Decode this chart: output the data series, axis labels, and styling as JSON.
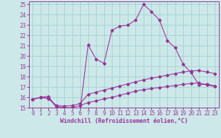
{
  "xlabel": "Windchill (Refroidissement éolien,°C)",
  "xlim": [
    -0.5,
    23.5
  ],
  "ylim": [
    15,
    25.3
  ],
  "yticks": [
    15,
    16,
    17,
    18,
    19,
    20,
    21,
    22,
    23,
    24,
    25
  ],
  "xticks": [
    0,
    1,
    2,
    3,
    4,
    5,
    6,
    7,
    8,
    9,
    10,
    11,
    12,
    13,
    14,
    15,
    16,
    17,
    18,
    19,
    20,
    21,
    22,
    23
  ],
  "background_color": "#cce8e8",
  "grid_color": "#99cccc",
  "line_color": "#993399",
  "line1_x": [
    0,
    1,
    2,
    3,
    4,
    5,
    6,
    7,
    8,
    9,
    10,
    11,
    12,
    13,
    14,
    15,
    16,
    17,
    18,
    19,
    20,
    21,
    22,
    23
  ],
  "line1_y": [
    15.8,
    16.0,
    16.1,
    15.0,
    14.9,
    14.85,
    14.85,
    21.1,
    19.7,
    19.3,
    22.5,
    22.9,
    23.0,
    23.5,
    25.0,
    24.3,
    23.5,
    21.5,
    20.8,
    19.2,
    18.4,
    17.2,
    17.3,
    17.1
  ],
  "line2_x": [
    0,
    1,
    2,
    3,
    4,
    5,
    6,
    7,
    8,
    9,
    10,
    11,
    12,
    13,
    14,
    15,
    16,
    17,
    18,
    19,
    20,
    21,
    22,
    23
  ],
  "line2_y": [
    15.8,
    16.0,
    15.9,
    15.2,
    15.15,
    15.2,
    15.4,
    16.3,
    16.5,
    16.7,
    16.9,
    17.1,
    17.3,
    17.5,
    17.7,
    17.85,
    18.0,
    18.15,
    18.3,
    18.45,
    18.55,
    18.6,
    18.45,
    18.3
  ],
  "line3_x": [
    0,
    1,
    2,
    3,
    4,
    5,
    6,
    7,
    8,
    9,
    10,
    11,
    12,
    13,
    14,
    15,
    16,
    17,
    18,
    19,
    20,
    21,
    22,
    23
  ],
  "line3_y": [
    15.8,
    16.0,
    15.9,
    15.1,
    15.0,
    15.0,
    15.2,
    15.5,
    15.65,
    15.85,
    16.0,
    16.2,
    16.4,
    16.6,
    16.75,
    16.85,
    16.95,
    17.05,
    17.15,
    17.25,
    17.35,
    17.4,
    17.2,
    17.05
  ],
  "marker": "D",
  "markersize": 2.0,
  "linewidth": 0.8,
  "tick_fontsize": 5.5,
  "xlabel_fontsize": 6.0
}
